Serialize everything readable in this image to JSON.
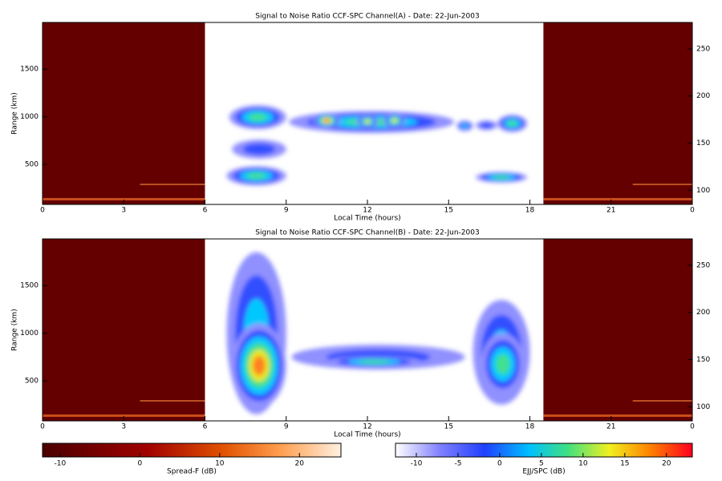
{
  "chart_data": [
    {
      "type": "heatmap",
      "title": "Signal to Noise Ratio CCF-SPC Channel(A) - Date: 22-Jun-2003",
      "xlabel": "Local Time (hours)",
      "ylabel": "Range (km)",
      "xlim": [
        0,
        24
      ],
      "xticks": [
        0,
        3,
        6,
        9,
        12,
        15,
        18,
        21,
        {
          "value": 24,
          "label": "0"
        }
      ],
      "ylim": [
        80,
        1990
      ],
      "yticks": [
        500,
        1000,
        1500
      ],
      "y2lim": [
        85,
        278
      ],
      "y2ticks": [
        100,
        150,
        200,
        250
      ]
    },
    {
      "type": "heatmap",
      "title": "Signal to Noise Ratio CCF-SPC Channel(B) - Date: 22-Jun-2003",
      "xlabel": "Local Time (hours)",
      "ylabel": "Range (km)",
      "xlim": [
        0,
        24
      ],
      "xticks": [
        0,
        3,
        6,
        9,
        12,
        15,
        18,
        21,
        {
          "value": 24,
          "label": "0"
        }
      ],
      "ylim": [
        80,
        1990
      ],
      "yticks": [
        500,
        1000,
        1500
      ],
      "y2lim": [
        85,
        278
      ],
      "y2ticks": [
        100,
        150,
        200,
        250
      ]
    }
  ],
  "colorbars": [
    {
      "label": "Spread-F (dB)",
      "lim": [
        -12.2,
        25.2
      ],
      "ticks": [
        -10,
        0,
        10,
        20
      ]
    },
    {
      "label": "EJJ/SPC (dB)",
      "lim": [
        -12.5,
        23.1
      ],
      "ticks": [
        -10,
        -5,
        0,
        5,
        10,
        15,
        20
      ]
    }
  ]
}
